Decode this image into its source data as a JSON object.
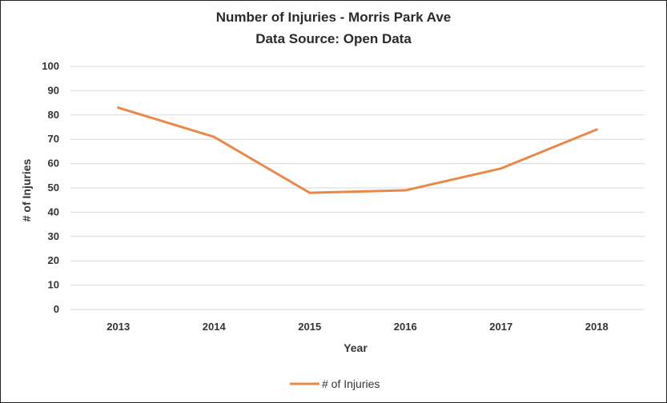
{
  "chart_data": {
    "type": "line",
    "title": "Number of Injuries - Morris Park Ave",
    "subtitle": "Data Source: Open Data",
    "xlabel": "Year",
    "ylabel": "# of Injuries",
    "categories": [
      "2013",
      "2014",
      "2015",
      "2016",
      "2017",
      "2018"
    ],
    "series": [
      {
        "name": "# of Injuries",
        "values": [
          83,
          71,
          48,
          49,
          58,
          74
        ],
        "color": "#e8894a"
      }
    ],
    "ylim": [
      0,
      100
    ],
    "yticks": [
      "0",
      "10",
      "20",
      "30",
      "40",
      "50",
      "60",
      "70",
      "80",
      "90",
      "100"
    ],
    "grid": true,
    "legend": "bottom"
  }
}
